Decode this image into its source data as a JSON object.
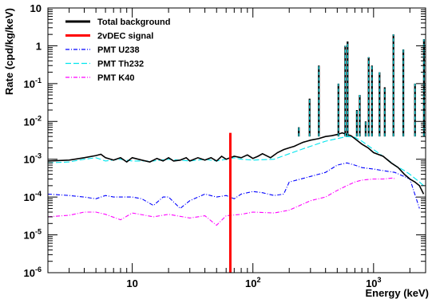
{
  "chart_data": {
    "type": "line",
    "xlabel": "Energy (keV)",
    "ylabel": "Rate (cpd/kg/keV)",
    "xscale": "log",
    "yscale": "log",
    "xlim": [
      2,
      2700
    ],
    "ylim": [
      1e-06,
      10
    ],
    "x_ticks": [
      {
        "value": 10,
        "base": "10",
        "exp": ""
      },
      {
        "value": 100,
        "base": "10",
        "exp": "2"
      },
      {
        "value": 1000,
        "base": "10",
        "exp": "3"
      }
    ],
    "y_ticks": [
      {
        "value": 1e-06,
        "base": "10",
        "exp": "-6"
      },
      {
        "value": 1e-05,
        "base": "10",
        "exp": "-5"
      },
      {
        "value": 0.0001,
        "base": "10",
        "exp": "-4"
      },
      {
        "value": 0.001,
        "base": "10",
        "exp": "-3"
      },
      {
        "value": 0.01,
        "base": "10",
        "exp": "-2"
      },
      {
        "value": 0.1,
        "base": "10",
        "exp": "-1"
      },
      {
        "value": 1,
        "base": "1",
        "exp": ""
      },
      {
        "value": 10,
        "base": "10",
        "exp": ""
      }
    ],
    "legend_position": "top-left",
    "series": [
      {
        "name": "Total background",
        "color": "#000000",
        "style": "solid",
        "points": [
          [
            2,
            0.0009
          ],
          [
            3,
            0.00095
          ],
          [
            4,
            0.0011
          ],
          [
            5,
            0.00125
          ],
          [
            5.5,
            0.00135
          ],
          [
            6,
            0.0011
          ],
          [
            7,
            0.00095
          ],
          [
            8,
            0.0011
          ],
          [
            9,
            0.00085
          ],
          [
            10,
            0.0011
          ],
          [
            12,
            0.00095
          ],
          [
            14,
            0.00085
          ],
          [
            16,
            0.00105
          ],
          [
            18,
            0.0009
          ],
          [
            20,
            0.0011
          ],
          [
            22,
            0.0009
          ],
          [
            25,
            0.00095
          ],
          [
            28,
            0.0011
          ],
          [
            30,
            0.0009
          ],
          [
            35,
            0.0011
          ],
          [
            40,
            0.00095
          ],
          [
            45,
            0.0011
          ],
          [
            50,
            0.0009
          ],
          [
            55,
            0.0012
          ],
          [
            60,
            0.001
          ],
          [
            65,
            0.0011
          ],
          [
            70,
            0.0012
          ],
          [
            80,
            0.0011
          ],
          [
            90,
            0.0013
          ],
          [
            100,
            0.00105
          ],
          [
            110,
            0.0012
          ],
          [
            120,
            0.0014
          ],
          [
            140,
            0.0011
          ],
          [
            160,
            0.0015
          ],
          [
            180,
            0.0018
          ],
          [
            200,
            0.002
          ],
          [
            220,
            0.0022
          ],
          [
            240,
            0.0025
          ],
          [
            260,
            0.0028
          ],
          [
            280,
            0.003
          ],
          [
            300,
            0.0032
          ],
          [
            350,
            0.0035
          ],
          [
            400,
            0.004
          ],
          [
            450,
            0.0042
          ],
          [
            500,
            0.0045
          ],
          [
            550,
            0.005
          ],
          [
            600,
            0.0045
          ],
          [
            650,
            0.0042
          ],
          [
            700,
            0.0035
          ],
          [
            800,
            0.0025
          ],
          [
            900,
            0.002
          ],
          [
            1000,
            0.0015
          ],
          [
            1200,
            0.0012
          ],
          [
            1400,
            0.0008
          ],
          [
            1600,
            0.0006
          ],
          [
            1800,
            0.0004
          ],
          [
            2000,
            0.0003
          ],
          [
            2200,
            0.00025
          ],
          [
            2400,
            0.0002
          ],
          [
            2600,
            0.00012
          ]
        ]
      },
      {
        "name": "2vDEC signal",
        "color": "#ff0000",
        "style": "solid",
        "points": [
          [
            65,
            1e-06
          ],
          [
            65,
            0.005
          ]
        ]
      },
      {
        "name": "PMT U238",
        "color": "#0000ff",
        "style": "dashdot",
        "points": [
          [
            2,
            0.00012
          ],
          [
            3,
            0.00011
          ],
          [
            4,
            0.0001
          ],
          [
            5,
            9e-05
          ],
          [
            6,
            0.00011
          ],
          [
            7,
            0.0001
          ],
          [
            8,
            0.0001
          ],
          [
            10,
            0.0001
          ],
          [
            12,
            9e-05
          ],
          [
            15,
            6e-05
          ],
          [
            18,
            0.0001
          ],
          [
            20,
            0.0001
          ],
          [
            25,
            5e-05
          ],
          [
            30,
            8e-05
          ],
          [
            40,
            0.00012
          ],
          [
            50,
            0.0001
          ],
          [
            60,
            0.00011
          ],
          [
            70,
            9e-05
          ],
          [
            80,
            0.00012
          ],
          [
            100,
            0.00014
          ],
          [
            120,
            0.00013
          ],
          [
            150,
            0.00011
          ],
          [
            180,
            0.00012
          ],
          [
            200,
            0.00025
          ],
          [
            250,
            0.0003
          ],
          [
            300,
            0.00035
          ],
          [
            400,
            0.00045
          ],
          [
            500,
            0.0007
          ],
          [
            600,
            0.0008
          ],
          [
            700,
            0.0007
          ],
          [
            800,
            0.0006
          ],
          [
            1000,
            0.00055
          ],
          [
            1200,
            0.0005
          ],
          [
            1500,
            0.00045
          ],
          [
            2000,
            0.0003
          ],
          [
            2400,
            5e-05
          ]
        ]
      },
      {
        "name": "PMT Th232",
        "color": "#00e5ee",
        "style": "dashed",
        "points": [
          [
            2,
            0.0008
          ],
          [
            3,
            0.00085
          ],
          [
            4,
            0.001
          ],
          [
            5,
            0.0011
          ],
          [
            6,
            0.0009
          ],
          [
            8,
            0.001
          ],
          [
            10,
            0.0009
          ],
          [
            15,
            0.0009
          ],
          [
            20,
            0.001
          ],
          [
            30,
            0.0009
          ],
          [
            40,
            0.001
          ],
          [
            50,
            0.0009
          ],
          [
            60,
            0.001
          ],
          [
            70,
            0.0011
          ],
          [
            80,
            0.001
          ],
          [
            100,
            0.00095
          ],
          [
            150,
            0.001
          ],
          [
            200,
            0.0014
          ],
          [
            250,
            0.0018
          ],
          [
            300,
            0.0022
          ],
          [
            400,
            0.003
          ],
          [
            500,
            0.0035
          ],
          [
            600,
            0.004
          ],
          [
            700,
            0.0038
          ],
          [
            800,
            0.003
          ],
          [
            1000,
            0.0018
          ],
          [
            1200,
            0.0012
          ],
          [
            1500,
            0.0007
          ],
          [
            1800,
            0.0005
          ],
          [
            2000,
            0.0004
          ],
          [
            2400,
            0.00025
          ],
          [
            2600,
            0.0002
          ]
        ]
      },
      {
        "name": "PMT K40",
        "color": "#ff00ff",
        "style": "dashdot",
        "points": [
          [
            2,
            3e-05
          ],
          [
            3,
            3.3e-05
          ],
          [
            4,
            4e-05
          ],
          [
            5,
            4e-05
          ],
          [
            6,
            3.5e-05
          ],
          [
            8,
            2.5e-05
          ],
          [
            10,
            3.8e-05
          ],
          [
            15,
            3e-05
          ],
          [
            20,
            3.5e-05
          ],
          [
            30,
            2.8e-05
          ],
          [
            40,
            3.2e-05
          ],
          [
            50,
            1.8e-05
          ],
          [
            60,
            3.2e-05
          ],
          [
            80,
            3.5e-05
          ],
          [
            100,
            4e-05
          ],
          [
            150,
            3.8e-05
          ],
          [
            200,
            4.5e-05
          ],
          [
            300,
            8e-05
          ],
          [
            400,
            0.0001
          ],
          [
            500,
            0.00015
          ],
          [
            600,
            0.0002
          ],
          [
            700,
            0.00025
          ],
          [
            800,
            0.00028
          ],
          [
            1000,
            0.0003
          ],
          [
            1200,
            0.0003
          ],
          [
            1460,
            0.00032
          ],
          [
            1500,
            0.0003
          ]
        ]
      }
    ],
    "peaks": [
      {
        "x": 240,
        "y": 0.007
      },
      {
        "x": 295,
        "y": 0.04
      },
      {
        "x": 352,
        "y": 0.3
      },
      {
        "x": 511,
        "y": 0.1
      },
      {
        "x": 583,
        "y": 1.0
      },
      {
        "x": 609,
        "y": 1.3
      },
      {
        "x": 727,
        "y": 0.02
      },
      {
        "x": 768,
        "y": 0.05
      },
      {
        "x": 860,
        "y": 0.01
      },
      {
        "x": 911,
        "y": 0.5
      },
      {
        "x": 969,
        "y": 0.3
      },
      {
        "x": 1120,
        "y": 0.2
      },
      {
        "x": 1238,
        "y": 0.08
      },
      {
        "x": 1460,
        "y": 2.0
      },
      {
        "x": 1764,
        "y": 0.8
      },
      {
        "x": 2204,
        "y": 0.1
      },
      {
        "x": 2614,
        "y": 1.5
      }
    ]
  }
}
